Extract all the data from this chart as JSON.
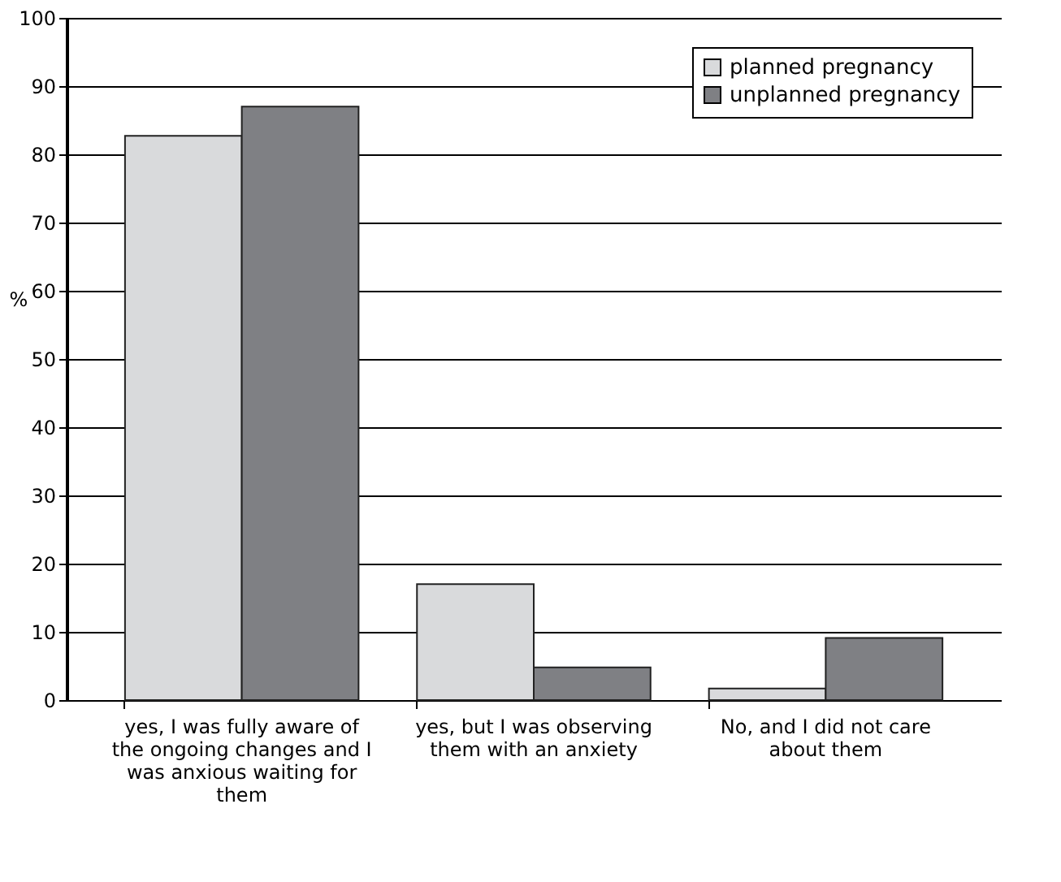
{
  "chart_data": {
    "type": "bar",
    "ylabel": "%",
    "categories": [
      "yes, I was fully aware of the ongoing changes and I was anxious waiting for them",
      "yes, but I was observing them with an anxiety",
      "No, and I did not care about them"
    ],
    "series": [
      {
        "name": "planned pregnancy",
        "color": "#d9dadc",
        "values": [
          82.7,
          17.0,
          1.7
        ]
      },
      {
        "name": "unplanned pregnancy",
        "color": "#7f8084",
        "values": [
          87.0,
          4.8,
          9.1
        ]
      }
    ],
    "ylim": [
      0,
      100
    ],
    "yticks": [
      0,
      10,
      20,
      30,
      40,
      50,
      60,
      70,
      80,
      90,
      100
    ],
    "grid": "y",
    "legend": "top right"
  }
}
